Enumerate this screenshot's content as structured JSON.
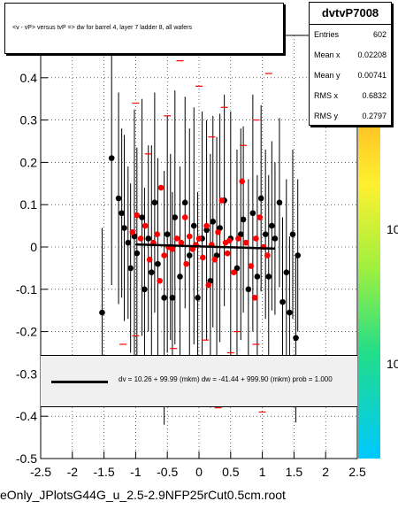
{
  "chart_data": {
    "type": "scatter",
    "title": "<v - vP>       versus  tvP =>  dw for barrel 4, layer 7 ladder 8, all wafers",
    "xlim": [
      -2.5,
      2.5
    ],
    "ylim": [
      -0.5,
      0.5
    ],
    "x_ticks": [
      "-2.5",
      "-2",
      "-1.5",
      "-1",
      "-0.5",
      "0",
      "0.5",
      "1",
      "1.5",
      "2",
      "2.5"
    ],
    "y_ticks": [
      "-0.5",
      "-0.4",
      "-0.3",
      "-0.2",
      "-0.1",
      "0",
      "0.1",
      "0.2",
      "0.3",
      "0.4"
    ],
    "stats": {
      "name": "dvtvP7008",
      "rows": [
        {
          "label": "Entries",
          "value": "602"
        },
        {
          "label": "Mean x",
          "value": "0.02208"
        },
        {
          "label": "Mean y",
          "value": "0.00741"
        },
        {
          "label": "RMS x",
          "value": "0.6832"
        },
        {
          "label": "RMS y",
          "value": "0.2797"
        }
      ]
    },
    "fit_text": "dv =    10.26 + 99.99 (mkm) dw =  -41.44 + 999.90 (mkm) prob = 1.000",
    "fit_line": {
      "x1": -1.0,
      "y1": 0.006,
      "x2": 1.2,
      "y2": -0.004
    },
    "palette_labels": [
      "10",
      "10"
    ],
    "colors": {
      "black_series": "#000000",
      "red_series": "#ff0000",
      "palette": [
        "#00c8ff",
        "#22dd88",
        "#a0f040",
        "#fff030",
        "#ffb020",
        "#ff5030"
      ]
    },
    "series": [
      {
        "name": "black points",
        "color": "#000000",
        "points": [
          [
            -1.38,
            0.21,
            0.3
          ],
          [
            -1.27,
            0.115,
            0.25
          ],
          [
            -1.22,
            0.08,
            0.2
          ],
          [
            -1.18,
            0.045,
            0.22
          ],
          [
            -1.12,
            0.01,
            0.18
          ],
          [
            -1.08,
            -0.05,
            0.2
          ],
          [
            -1.02,
            0.025,
            0.3
          ],
          [
            -0.98,
            -0.015,
            0.25
          ],
          [
            -0.9,
            0.07,
            0.28
          ],
          [
            -0.86,
            -0.1,
            0.24
          ],
          [
            -0.8,
            0.02,
            0.22
          ],
          [
            -0.75,
            -0.06,
            0.3
          ],
          [
            -0.7,
            0.105,
            0.26
          ],
          [
            -0.65,
            -0.04,
            0.25
          ],
          [
            -0.55,
            -0.12,
            0.3
          ],
          [
            -0.5,
            0.03,
            0.28
          ],
          [
            -0.45,
            0.0,
            0.22
          ],
          [
            -0.38,
            0.07,
            0.3
          ],
          [
            -0.3,
            -0.07,
            0.26
          ],
          [
            -0.22,
            0.105,
            0.25
          ],
          [
            -0.15,
            -0.02,
            0.3
          ],
          [
            -0.08,
            0.05,
            0.28
          ],
          [
            -0.02,
            -0.12,
            0.25
          ],
          [
            0.05,
            0.02,
            0.3
          ],
          [
            0.12,
            0.04,
            0.26
          ],
          [
            0.18,
            -0.08,
            0.3
          ],
          [
            0.22,
            0.06,
            0.25
          ],
          [
            0.28,
            -0.02,
            0.28
          ],
          [
            0.33,
            0.045,
            0.27
          ],
          [
            0.4,
            0.11,
            0.25
          ],
          [
            0.5,
            0.02,
            0.3
          ],
          [
            0.6,
            -0.05,
            0.28
          ],
          [
            0.66,
            0.03,
            0.25
          ],
          [
            0.7,
            0.065,
            0.22
          ],
          [
            0.78,
            -0.1,
            0.26
          ],
          [
            0.85,
            0.08,
            0.28
          ],
          [
            0.92,
            -0.07,
            0.24
          ],
          [
            0.98,
            0.115,
            0.22
          ],
          [
            1.05,
            0.03,
            0.2
          ],
          [
            1.1,
            -0.07,
            0.24
          ],
          [
            1.15,
            0.05,
            0.2
          ],
          [
            1.2,
            0.02,
            0.18
          ],
          [
            1.27,
            0.105,
            0.2
          ],
          [
            1.32,
            -0.13,
            0.2
          ],
          [
            1.38,
            -0.06,
            0.22
          ],
          [
            1.43,
            -0.155,
            0.18
          ],
          [
            1.48,
            0.03,
            0.2
          ],
          [
            1.53,
            -0.215,
            0.2
          ],
          [
            1.56,
            -0.02,
            0.18
          ],
          [
            -1.53,
            -0.155,
            0.2
          ],
          [
            -0.42,
            -0.12,
            0.25
          ]
        ]
      },
      {
        "name": "red points",
        "color": "#ff0000",
        "points": [
          [
            -1.05,
            0.035
          ],
          [
            -0.98,
            0.075
          ],
          [
            -0.92,
            0.02
          ],
          [
            -0.85,
            0.05
          ],
          [
            -0.78,
            -0.03
          ],
          [
            -0.72,
            0.01
          ],
          [
            -0.66,
            0.03
          ],
          [
            -0.6,
            0.14
          ],
          [
            -0.55,
            -0.02
          ],
          [
            -0.48,
            0.0
          ],
          [
            -0.42,
            -0.005
          ],
          [
            -0.35,
            0.02
          ],
          [
            -0.28,
            0.01
          ],
          [
            -0.22,
            0.07
          ],
          [
            -0.15,
            0.025
          ],
          [
            -0.1,
            -0.005
          ],
          [
            -0.05,
            0.005
          ],
          [
            0.0,
            0.02
          ],
          [
            0.06,
            -0.025
          ],
          [
            0.12,
            0.05
          ],
          [
            0.2,
            0.005
          ],
          [
            0.25,
            -0.03
          ],
          [
            0.3,
            0.035
          ],
          [
            0.36,
            0.11
          ],
          [
            0.42,
            0.01
          ],
          [
            0.48,
            0.015
          ],
          [
            0.55,
            -0.06
          ],
          [
            0.62,
            0.02
          ],
          [
            0.68,
            0.155
          ],
          [
            0.74,
            0.01
          ],
          [
            0.82,
            -0.045
          ],
          [
            0.9,
            0.02
          ],
          [
            0.96,
            0.07
          ],
          [
            1.02,
            0.0
          ],
          [
            1.08,
            -0.02
          ],
          [
            -0.2,
            -0.04
          ],
          [
            0.15,
            -0.09
          ],
          [
            0.45,
            -0.015
          ],
          [
            -0.62,
            -0.08
          ],
          [
            0.88,
            -0.12
          ]
        ]
      },
      {
        "name": "red scatter low",
        "color": "#ff0000",
        "points": [
          [
            -1.2,
            -0.23
          ],
          [
            -0.9,
            -0.26
          ],
          [
            -0.4,
            -0.24
          ],
          [
            0.1,
            -0.22
          ],
          [
            0.5,
            -0.25
          ],
          [
            0.9,
            -0.23
          ],
          [
            1.2,
            -0.27
          ],
          [
            -0.7,
            -0.36
          ],
          [
            0.3,
            -0.38
          ],
          [
            0.8,
            -0.34
          ],
          [
            -0.2,
            -0.31
          ],
          [
            1.0,
            -0.39
          ],
          [
            -1.0,
            -0.21
          ],
          [
            0.6,
            -0.2
          ]
        ]
      },
      {
        "name": "red scatter high",
        "color": "#ff0000",
        "points": [
          [
            -1.0,
            0.34
          ],
          [
            -0.5,
            0.31
          ],
          [
            0.0,
            0.38
          ],
          [
            0.4,
            0.33
          ],
          [
            0.9,
            0.3
          ],
          [
            -0.8,
            0.22
          ],
          [
            0.2,
            0.26
          ],
          [
            0.7,
            0.24
          ],
          [
            -0.3,
            0.44
          ],
          [
            1.1,
            0.41
          ]
        ]
      }
    ]
  },
  "footer": "eOnly_JPlotsG44G_u_2.5-2.9NFP25rCut0.5cm.root"
}
